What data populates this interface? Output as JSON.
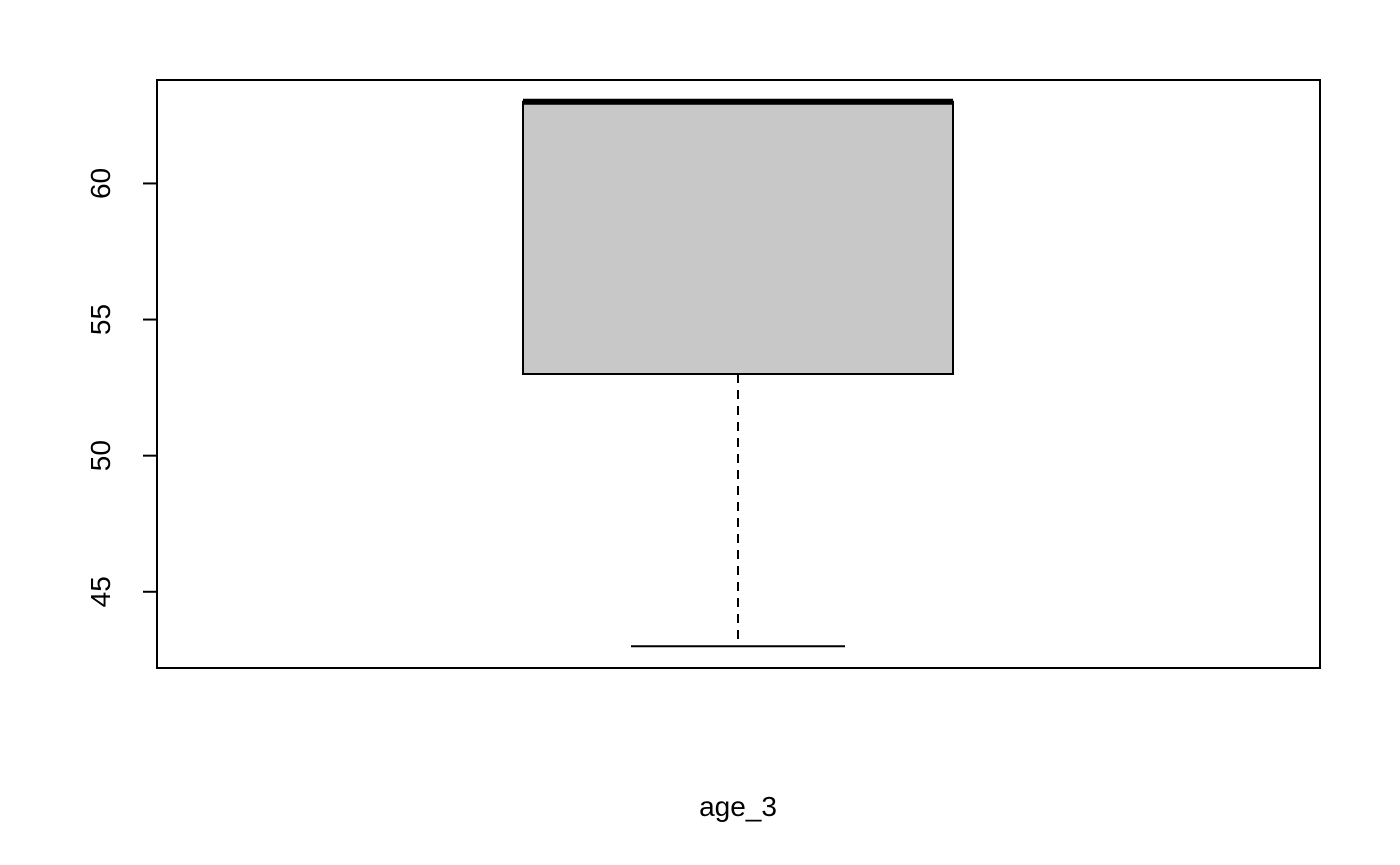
{
  "chart_data": {
    "type": "boxplot",
    "title": "",
    "xlabel": "age_3",
    "ylabel": "",
    "ylim": [
      42.2,
      63.8
    ],
    "yticks": [
      45,
      50,
      55,
      60
    ],
    "ytick_labels": [
      "45",
      "50",
      "55",
      "60"
    ],
    "series": [
      {
        "name": "age_3",
        "min": 43,
        "q1": 53,
        "median": 63,
        "q3": 63,
        "max": 63
      }
    ],
    "grid": false,
    "legend": "none"
  },
  "style": {
    "box_fill": "#c8c8c8",
    "line_color": "#000000",
    "background": "#ffffff"
  }
}
